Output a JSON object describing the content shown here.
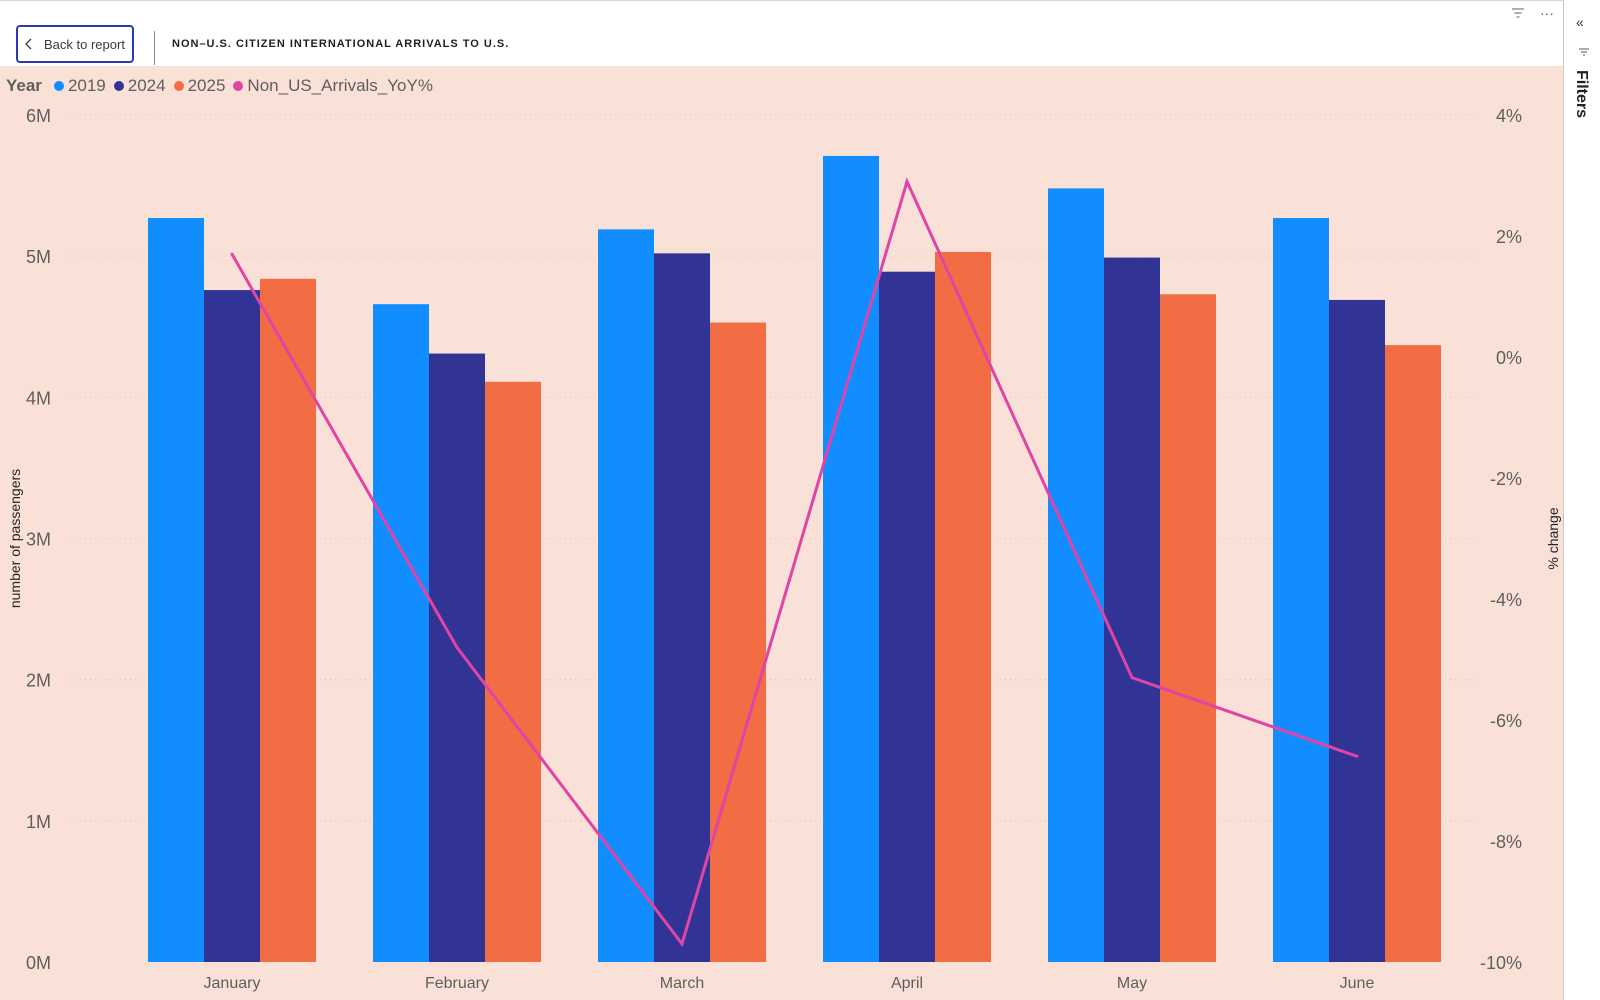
{
  "header": {
    "back_label": "Back to report",
    "title": "NON–U.S. CITIZEN INTERNATIONAL ARRIVALS TO U.S."
  },
  "icons": {
    "back": "chevron-left-icon",
    "filter": "filter-icon",
    "more": "more-options-icon",
    "collapse": "double-chevron-left-icon",
    "panel_filter": "filter-icon"
  },
  "filters_panel": {
    "label": "Filters"
  },
  "chart_data": {
    "type": "bar",
    "legend_title": "Year",
    "legend_position": "top-left",
    "categories": [
      "January",
      "February",
      "March",
      "April",
      "May",
      "June"
    ],
    "series": [
      {
        "name": "2019",
        "color": "#118dff",
        "values": [
          5.27,
          4.66,
          5.19,
          5.71,
          5.48,
          5.27
        ]
      },
      {
        "name": "2024",
        "color": "#313495",
        "values": [
          4.76,
          4.31,
          5.02,
          4.89,
          4.99,
          4.69
        ]
      },
      {
        "name": "2025",
        "color": "#f36d44",
        "values": [
          4.84,
          4.11,
          4.53,
          5.03,
          4.73,
          4.37
        ]
      }
    ],
    "line_series": {
      "name": "Non_US_Arrivals_YoY%",
      "color": "#e044a7",
      "type": "line",
      "axis": "right",
      "values": [
        1.7,
        -4.8,
        -9.7,
        2.9,
        -5.3,
        -6.6
      ]
    },
    "y_left": {
      "label": "number of passengers",
      "ylim": [
        0,
        6
      ],
      "ticks": [
        0,
        1,
        2,
        3,
        4,
        5,
        6
      ],
      "tick_labels": [
        "0M",
        "1M",
        "2M",
        "3M",
        "4M",
        "5M",
        "6M"
      ]
    },
    "y_right": {
      "label": "% change",
      "ylim": [
        -10,
        4
      ],
      "ticks": [
        -10,
        -8,
        -6,
        -4,
        -2,
        0,
        2,
        4
      ],
      "tick_labels": [
        "-10%",
        "-8%",
        "-6%",
        "-4%",
        "-2%",
        "0%",
        "2%",
        "4%"
      ]
    },
    "grid": true
  }
}
